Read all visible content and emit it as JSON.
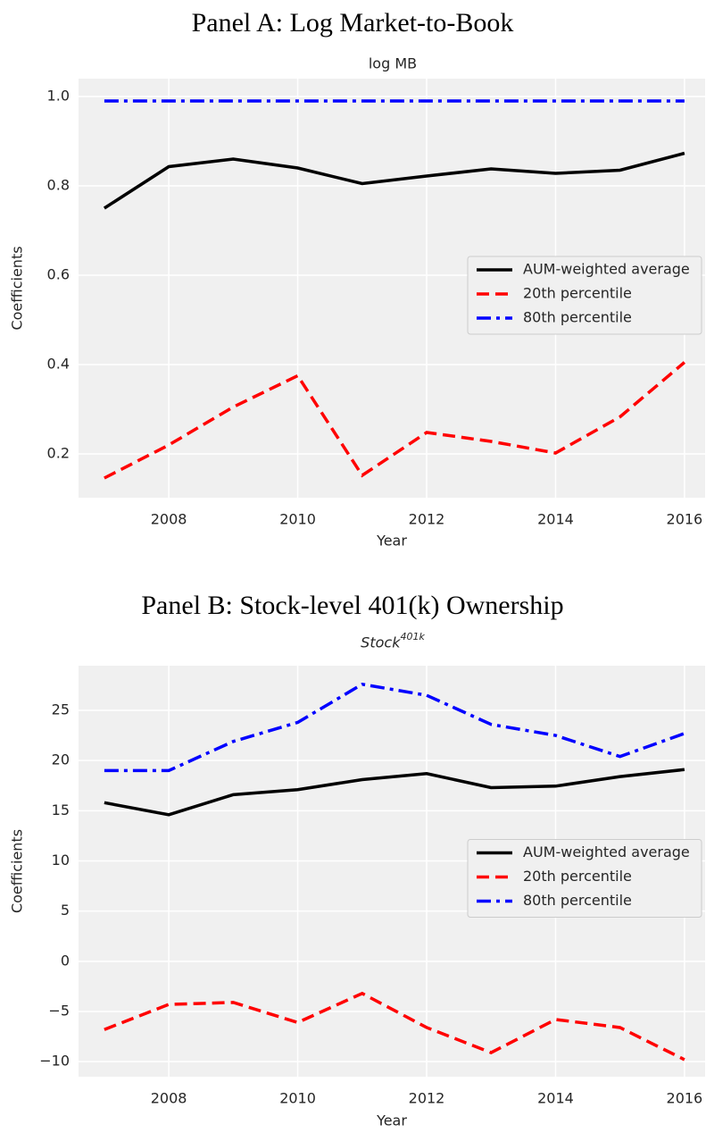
{
  "chart_data": [
    {
      "type": "line",
      "title": "Panel A: Log Market-to-Book",
      "subtitle": "log MB",
      "xlabel": "Year",
      "ylabel": "Coefficients",
      "x": [
        2007,
        2008,
        2009,
        2010,
        2011,
        2012,
        2013,
        2014,
        2015,
        2016
      ],
      "series": [
        {
          "name": "AUM-weighted average",
          "color": "#000000",
          "linestyle": "solid",
          "values": [
            0.75,
            0.843,
            0.86,
            0.84,
            0.805,
            0.822,
            0.838,
            0.828,
            0.835,
            0.873
          ]
        },
        {
          "name": "20th percentile",
          "color": "#ff0000",
          "linestyle": "dashed",
          "values": [
            0.146,
            0.22,
            0.305,
            0.375,
            0.152,
            0.248,
            0.228,
            0.202,
            0.283,
            0.405
          ]
        },
        {
          "name": "80th percentile",
          "color": "#0000ff",
          "linestyle": "dashdot",
          "values": [
            0.99,
            0.99,
            0.99,
            0.99,
            0.99,
            0.99,
            0.99,
            0.99,
            0.99,
            0.99
          ]
        }
      ],
      "xlim": [
        2006.6,
        2016.32
      ],
      "xticks": [
        2008,
        2010,
        2012,
        2014,
        2016
      ],
      "ylim": [
        0.102,
        1.04
      ],
      "yticks": [
        {
          "value": 0.2,
          "label": "0.2"
        },
        {
          "value": 0.4,
          "label": "0.4"
        },
        {
          "value": 0.6,
          "label": "0.6"
        },
        {
          "value": 0.8,
          "label": "0.8"
        },
        {
          "value": 1.0,
          "label": "1.0"
        }
      ],
      "grid": true,
      "legend": "center right"
    },
    {
      "type": "line",
      "title": "Panel B: Stock-level 401(k) Ownership",
      "subtitle": "Stock",
      "subtitle_superscript": "401k",
      "xlabel": "Year",
      "ylabel": "Coefficients",
      "x": [
        2007,
        2008,
        2009,
        2010,
        2011,
        2012,
        2013,
        2014,
        2015,
        2016
      ],
      "series": [
        {
          "name": "AUM-weighted average",
          "color": "#000000",
          "linestyle": "solid",
          "values": [
            15.8,
            14.6,
            16.6,
            17.1,
            18.1,
            18.7,
            17.3,
            17.45,
            18.4,
            19.1
          ]
        },
        {
          "name": "20th percentile",
          "color": "#ff0000",
          "linestyle": "dashed",
          "values": [
            -6.8,
            -4.3,
            -4.1,
            -6.1,
            -3.2,
            -6.6,
            -9.1,
            -5.8,
            -6.6,
            -9.8
          ]
        },
        {
          "name": "80th percentile",
          "color": "#0000ff",
          "linestyle": "dashdot",
          "values": [
            19.0,
            19.0,
            21.9,
            23.8,
            27.6,
            26.5,
            23.6,
            22.5,
            20.4,
            22.7
          ]
        }
      ],
      "xlim": [
        2006.6,
        2016.32
      ],
      "xticks": [
        2008,
        2010,
        2012,
        2014,
        2016
      ],
      "ylim": [
        -11.5,
        29.45
      ],
      "yticks": [
        {
          "value": -10,
          "label": "−10"
        },
        {
          "value": -5,
          "label": "−5"
        },
        0,
        5,
        10,
        15,
        20,
        25
      ],
      "grid": true,
      "legend": "center right"
    }
  ]
}
